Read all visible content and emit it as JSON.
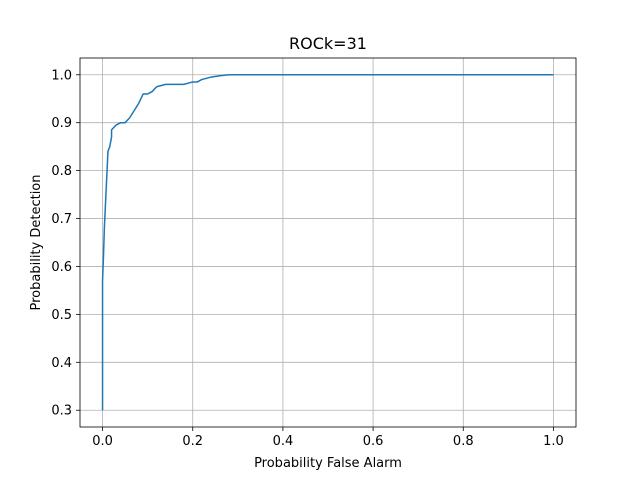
{
  "chart_data": {
    "type": "line",
    "title": "ROCk=31",
    "xlabel": "Probability False Alarm",
    "ylabel": "Probability Detection",
    "xlim": [
      -0.05,
      1.05
    ],
    "ylim": [
      0.265,
      1.035
    ],
    "xticks": [
      0.0,
      0.2,
      0.4,
      0.6,
      0.8,
      1.0
    ],
    "xtick_labels": [
      "0.0",
      "0.2",
      "0.4",
      "0.6",
      "0.8",
      "1.0"
    ],
    "yticks": [
      0.3,
      0.4,
      0.5,
      0.6,
      0.7,
      0.8,
      0.9,
      1.0
    ],
    "ytick_labels": [
      "0.3",
      "0.4",
      "0.5",
      "0.6",
      "0.7",
      "0.8",
      "0.9",
      "1.0"
    ],
    "grid": true,
    "series": [
      {
        "color": "#1f77b4",
        "x": [
          0.0,
          0.0,
          0.002,
          0.004,
          0.006,
          0.008,
          0.01,
          0.012,
          0.016,
          0.02,
          0.02,
          0.03,
          0.04,
          0.05,
          0.06,
          0.08,
          0.09,
          0.1,
          0.11,
          0.12,
          0.14,
          0.16,
          0.18,
          0.2,
          0.21,
          0.22,
          0.24,
          0.26,
          0.28,
          0.3,
          0.4,
          0.6,
          0.8,
          1.0
        ],
        "y": [
          0.3,
          0.57,
          0.62,
          0.68,
          0.72,
          0.76,
          0.8,
          0.84,
          0.85,
          0.87,
          0.885,
          0.895,
          0.9,
          0.9,
          0.91,
          0.94,
          0.96,
          0.96,
          0.965,
          0.975,
          0.98,
          0.98,
          0.98,
          0.985,
          0.985,
          0.99,
          0.995,
          0.998,
          1.0,
          1.0,
          1.0,
          1.0,
          1.0,
          1.0
        ]
      }
    ]
  }
}
